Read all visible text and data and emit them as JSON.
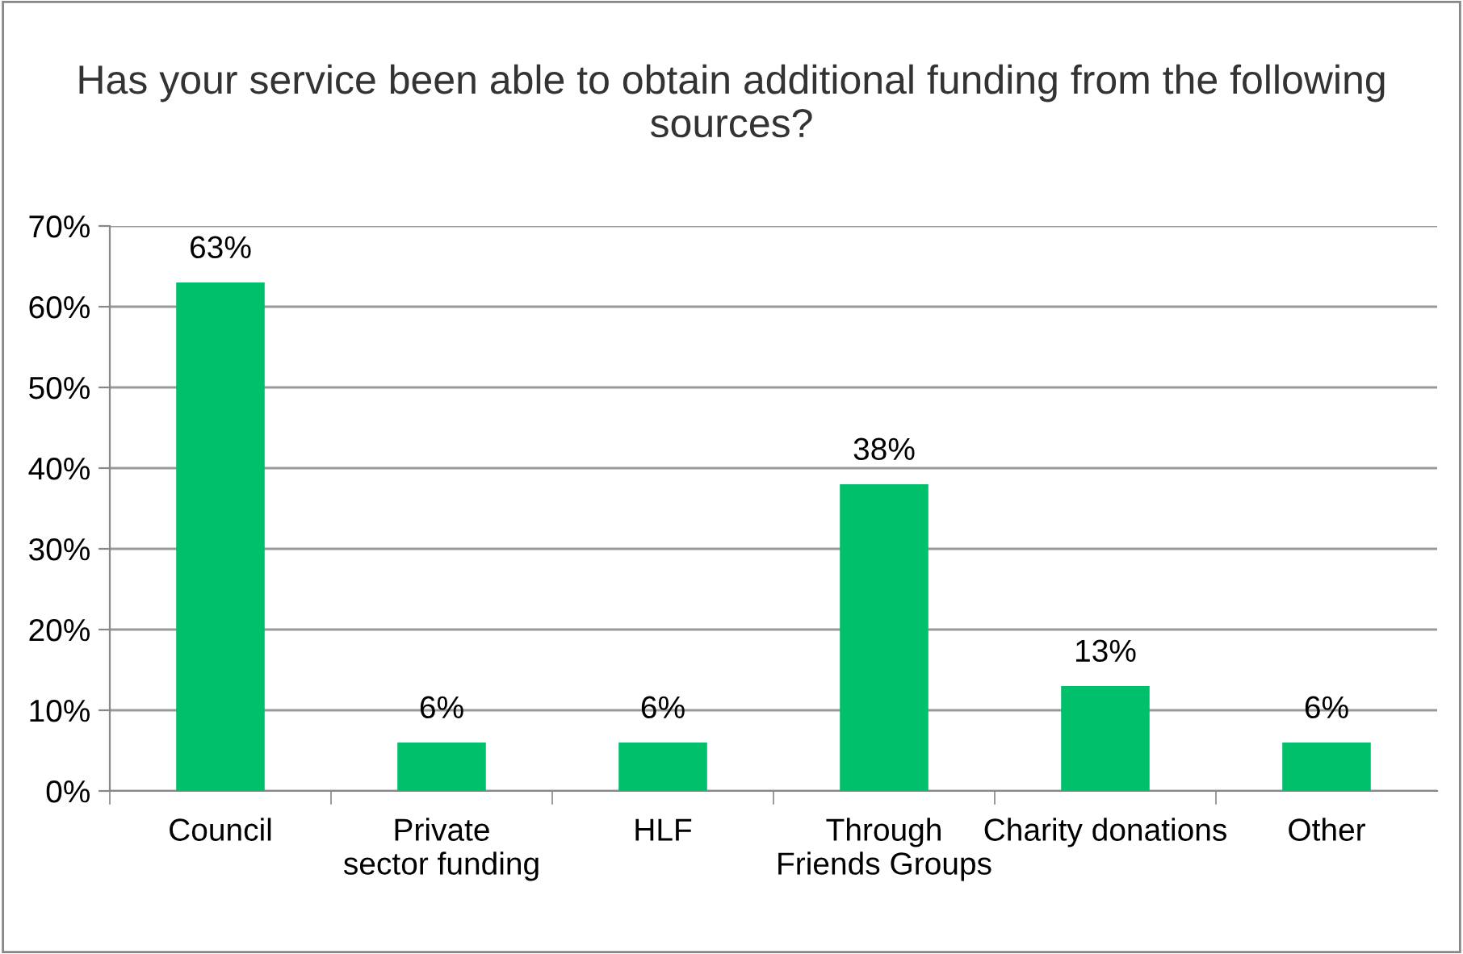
{
  "chart_data": {
    "type": "bar",
    "title": "Has your service been able to obtain additional funding from the following sources?",
    "categories": [
      "Council",
      "Private sector funding",
      "HLF",
      "Through Friends Groups",
      "Charity donations",
      "Other"
    ],
    "values": [
      63,
      6,
      6,
      38,
      13,
      6
    ],
    "value_labels": [
      "63%",
      "6%",
      "6%",
      "38%",
      "13%",
      "6%"
    ],
    "color": "#00c06b",
    "ylim": [
      0,
      70
    ],
    "yticks": [
      {
        "value": 0,
        "label": "0%"
      },
      {
        "value": 10,
        "label": "10%"
      },
      {
        "value": 20,
        "label": "20%"
      },
      {
        "value": 30,
        "label": "30%"
      },
      {
        "value": 40,
        "label": "40%"
      },
      {
        "value": 50,
        "label": "50%"
      },
      {
        "value": 60,
        "label": "60%"
      },
      {
        "value": 70,
        "label": "70%"
      }
    ],
    "grid": "y"
  }
}
